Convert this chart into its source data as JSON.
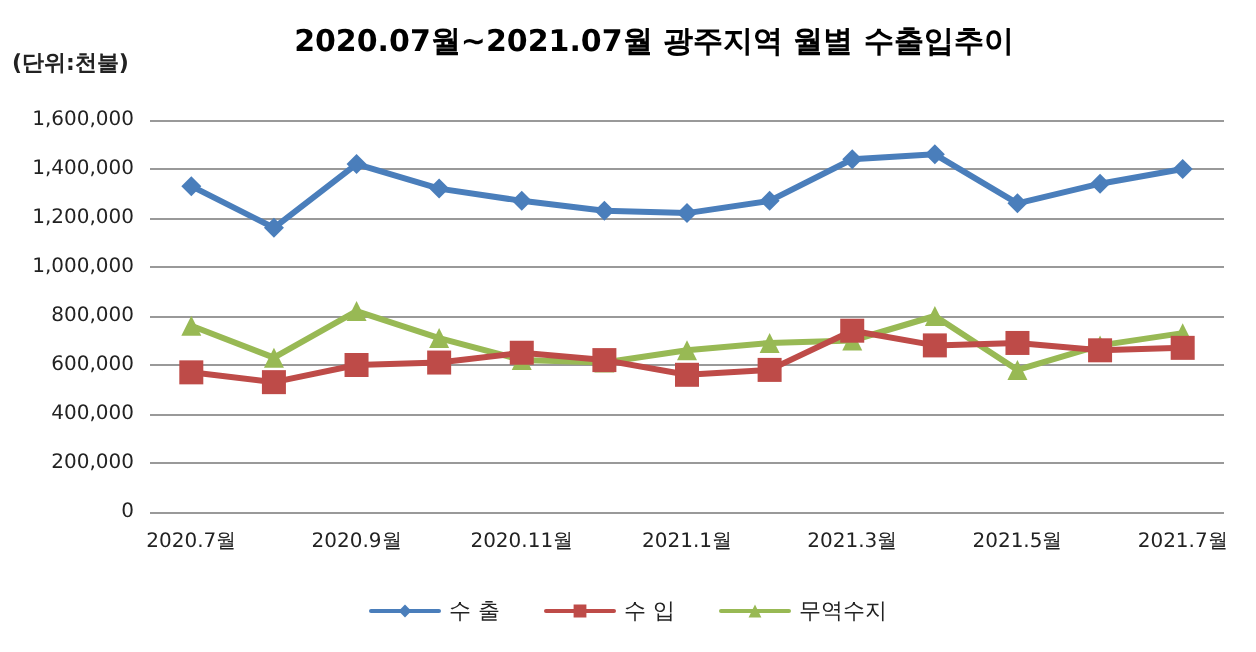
{
  "chart_data": {
    "type": "line",
    "title": "2020.07월~2021.07월 광주지역 월별 수출입추이",
    "ylabel": "(단위:천불)",
    "categories": [
      "2020.7월",
      null,
      "2020.9월",
      null,
      "2020.11월",
      null,
      "2021.1월",
      null,
      "2021.3월",
      null,
      "2021.5월",
      null,
      "2021.7월"
    ],
    "series": [
      {
        "name": "수 출",
        "color": "#4a7ebb",
        "marker": "diamond",
        "values": [
          1330000,
          1160000,
          1420000,
          1320000,
          1270000,
          1230000,
          1220000,
          1270000,
          1440000,
          1460000,
          1260000,
          1340000,
          1400000
        ]
      },
      {
        "name": "수 입",
        "color": "#be4b48",
        "marker": "square",
        "values": [
          570000,
          530000,
          600000,
          610000,
          650000,
          620000,
          560000,
          580000,
          740000,
          680000,
          690000,
          660000,
          670000
        ]
      },
      {
        "name": "무역수지",
        "color": "#98b954",
        "marker": "triangle",
        "values": [
          760000,
          630000,
          820000,
          710000,
          620000,
          610000,
          660000,
          690000,
          700000,
          800000,
          580000,
          680000,
          730000
        ]
      }
    ],
    "ylim": [
      0,
      1600000
    ],
    "yticks": [
      {
        "value": 0,
        "label": "0"
      },
      {
        "value": 200000,
        "label": "200,000"
      },
      {
        "value": 400000,
        "label": "400,000"
      },
      {
        "value": 600000,
        "label": "600,000"
      },
      {
        "value": 800000,
        "label": "800,000"
      },
      {
        "value": 1000000,
        "label": "1,000,000"
      },
      {
        "value": 1200000,
        "label": "1,200,000"
      },
      {
        "value": 1400000,
        "label": "1,400,000"
      },
      {
        "value": 1600000,
        "label": "1,600,000"
      }
    ],
    "grid": "y",
    "legend": "bottom",
    "line_style": "solid"
  }
}
